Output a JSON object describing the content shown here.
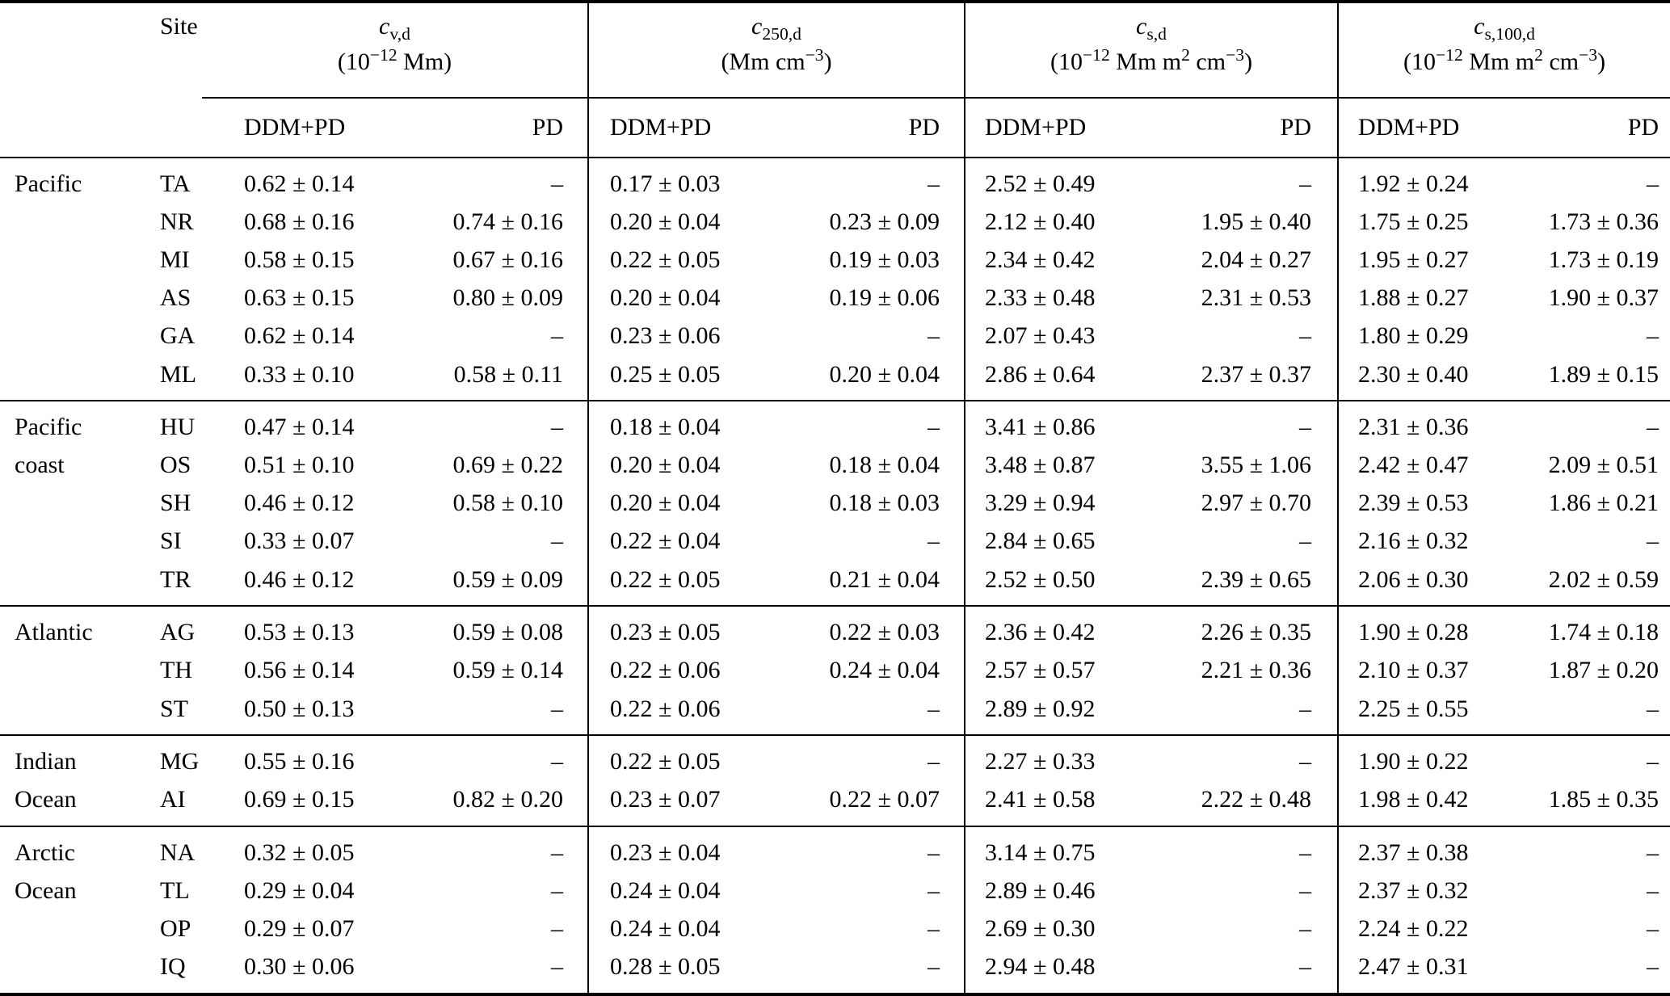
{
  "table": {
    "site_header": "Site",
    "no_data_marker": "–",
    "column_groups": [
      {
        "symbol_base": "c",
        "symbol_sub": "v,d",
        "units": "(10^{−12} Mm)"
      },
      {
        "symbol_base": "c",
        "symbol_sub": "250,d",
        "units": "(Mm cm^{−3})"
      },
      {
        "symbol_base": "c",
        "symbol_sub": "s,d",
        "units": "(10^{−12} Mm m^{2} cm^{−3})"
      },
      {
        "symbol_base": "c",
        "symbol_sub": "s,100,d",
        "units": "(10^{−12} Mm m^{2} cm^{−3})"
      }
    ],
    "method_headers": [
      "DDM+PD",
      "PD"
    ],
    "row_groups": [
      {
        "region_lines": [
          "Pacific"
        ],
        "rows": [
          {
            "site": "TA",
            "values": [
              "0.62 ± 0.14",
              "–",
              "0.17 ± 0.03",
              "–",
              "2.52 ± 0.49",
              "–",
              "1.92 ± 0.24",
              "–"
            ]
          },
          {
            "site": "NR",
            "values": [
              "0.68 ± 0.16",
              "0.74 ± 0.16",
              "0.20 ± 0.04",
              "0.23 ± 0.09",
              "2.12 ± 0.40",
              "1.95 ± 0.40",
              "1.75 ± 0.25",
              "1.73 ± 0.36"
            ]
          },
          {
            "site": "MI",
            "values": [
              "0.58 ± 0.15",
              "0.67 ± 0.16",
              "0.22 ± 0.05",
              "0.19 ± 0.03",
              "2.34 ± 0.42",
              "2.04 ± 0.27",
              "1.95 ± 0.27",
              "1.73 ± 0.19"
            ]
          },
          {
            "site": "AS",
            "values": [
              "0.63 ± 0.15",
              "0.80 ± 0.09",
              "0.20 ± 0.04",
              "0.19 ± 0.06",
              "2.33 ± 0.48",
              "2.31 ± 0.53",
              "1.88 ± 0.27",
              "1.90 ± 0.37"
            ]
          },
          {
            "site": "GA",
            "values": [
              "0.62 ± 0.14",
              "–",
              "0.23 ± 0.06",
              "–",
              "2.07 ± 0.43",
              "–",
              "1.80 ± 0.29",
              "–"
            ]
          },
          {
            "site": "ML",
            "values": [
              "0.33 ± 0.10",
              "0.58 ± 0.11",
              "0.25 ± 0.05",
              "0.20 ± 0.04",
              "2.86 ± 0.64",
              "2.37 ± 0.37",
              "2.30 ± 0.40",
              "1.89 ± 0.15"
            ]
          }
        ]
      },
      {
        "region_lines": [
          "Pacific",
          "coast"
        ],
        "rows": [
          {
            "site": "HU",
            "values": [
              "0.47 ± 0.14",
              "–",
              "0.18 ± 0.04",
              "–",
              "3.41 ± 0.86",
              "–",
              "2.31 ± 0.36",
              "–"
            ]
          },
          {
            "site": "OS",
            "values": [
              "0.51 ± 0.10",
              "0.69 ± 0.22",
              "0.20 ± 0.04",
              "0.18 ± 0.04",
              "3.48 ± 0.87",
              "3.55 ± 1.06",
              "2.42 ± 0.47",
              "2.09 ± 0.51"
            ]
          },
          {
            "site": "SH",
            "values": [
              "0.46 ± 0.12",
              "0.58 ± 0.10",
              "0.20 ± 0.04",
              "0.18 ± 0.03",
              "3.29 ± 0.94",
              "2.97 ± 0.70",
              "2.39 ± 0.53",
              "1.86 ± 0.21"
            ]
          },
          {
            "site": "SI",
            "values": [
              "0.33 ± 0.07",
              "–",
              "0.22 ± 0.04",
              "–",
              "2.84 ± 0.65",
              "–",
              "2.16 ± 0.32",
              "–"
            ]
          },
          {
            "site": "TR",
            "values": [
              "0.46 ± 0.12",
              "0.59 ± 0.09",
              "0.22 ± 0.05",
              "0.21 ± 0.04",
              "2.52 ± 0.50",
              "2.39 ± 0.65",
              "2.06 ± 0.30",
              "2.02 ± 0.59"
            ]
          }
        ]
      },
      {
        "region_lines": [
          "Atlantic"
        ],
        "rows": [
          {
            "site": "AG",
            "values": [
              "0.53 ± 0.13",
              "0.59 ± 0.08",
              "0.23 ± 0.05",
              "0.22 ± 0.03",
              "2.36 ± 0.42",
              "2.26 ± 0.35",
              "1.90 ± 0.28",
              "1.74 ± 0.18"
            ]
          },
          {
            "site": "TH",
            "values": [
              "0.56 ± 0.14",
              "0.59 ± 0.14",
              "0.22 ± 0.06",
              "0.24 ± 0.04",
              "2.57 ± 0.57",
              "2.21 ± 0.36",
              "2.10 ± 0.37",
              "1.87 ± 0.20"
            ]
          },
          {
            "site": "ST",
            "values": [
              "0.50 ± 0.13",
              "–",
              "0.22 ± 0.06",
              "–",
              "2.89 ± 0.92",
              "–",
              "2.25 ± 0.55",
              "–"
            ]
          }
        ]
      },
      {
        "region_lines": [
          "Indian",
          "Ocean"
        ],
        "rows": [
          {
            "site": "MG",
            "values": [
              "0.55 ± 0.16",
              "–",
              "0.22 ± 0.05",
              "–",
              "2.27 ± 0.33",
              "–",
              "1.90 ± 0.22",
              "–"
            ]
          },
          {
            "site": "AI",
            "values": [
              "0.69 ± 0.15",
              "0.82 ± 0.20",
              "0.23 ± 0.07",
              "0.22 ± 0.07",
              "2.41 ± 0.58",
              "2.22 ± 0.48",
              "1.98 ± 0.42",
              "1.85 ± 0.35"
            ]
          }
        ]
      },
      {
        "region_lines": [
          "Arctic",
          "Ocean"
        ],
        "rows": [
          {
            "site": "NA",
            "values": [
              "0.32 ± 0.05",
              "–",
              "0.23 ± 0.04",
              "–",
              "3.14 ± 0.75",
              "–",
              "2.37 ± 0.38",
              "–"
            ]
          },
          {
            "site": "TL",
            "values": [
              "0.29 ± 0.04",
              "–",
              "0.24 ± 0.04",
              "–",
              "2.89 ± 0.46",
              "–",
              "2.37 ± 0.32",
              "–"
            ]
          },
          {
            "site": "OP",
            "values": [
              "0.29 ± 0.07",
              "–",
              "0.24 ± 0.04",
              "–",
              "2.69 ± 0.30",
              "–",
              "2.24 ± 0.22",
              "–"
            ]
          },
          {
            "site": "IQ",
            "values": [
              "0.30 ± 0.06",
              "–",
              "0.28 ± 0.05",
              "–",
              "2.94 ± 0.48",
              "–",
              "2.47 ± 0.31",
              "–"
            ]
          }
        ]
      }
    ]
  }
}
